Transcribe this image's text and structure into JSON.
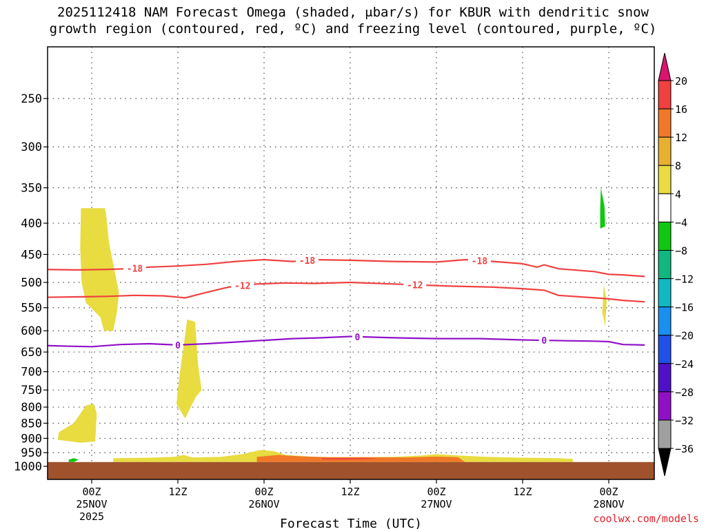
{
  "title": {
    "line1": "2025112418 NAM Forecast Omega (shaded, μbar/s) for KBUR with dendritic snow",
    "line2": "growth region (contoured, red, ºC) and freezing level (contoured, purple, ºC)"
  },
  "credit": "coolwx.com/models",
  "chart_data": {
    "type": "time-height cross section",
    "title": "2025112418 NAM Forecast Omega (shaded, μbar/s) for KBUR with dendritic snow growth region (contoured, red, ºC) and freezing level (contoured, purple, ºC)",
    "xlabel": "Forecast Time (UTC)",
    "ylabel": "",
    "y_scale": "log-pressure (hPa), inverted",
    "x_range_hours": [
      -7,
      77
    ],
    "y_range_hpa": [
      1050,
      200
    ],
    "y_ticks": [
      250,
      300,
      350,
      400,
      450,
      500,
      550,
      600,
      650,
      700,
      750,
      800,
      850,
      900,
      950,
      1000
    ],
    "x_ticks": [
      {
        "hour": 0,
        "label": "00Z",
        "sub1": "25NOV",
        "sub2": "2025"
      },
      {
        "hour": 12,
        "label": "12Z",
        "sub1": "",
        "sub2": ""
      },
      {
        "hour": 24,
        "label": "00Z",
        "sub1": "26NOV",
        "sub2": ""
      },
      {
        "hour": 36,
        "label": "12Z",
        "sub1": "",
        "sub2": ""
      },
      {
        "hour": 48,
        "label": "00Z",
        "sub1": "27NOV",
        "sub2": ""
      },
      {
        "hour": 60,
        "label": "12Z",
        "sub1": "",
        "sub2": ""
      },
      {
        "hour": 72,
        "label": "00Z",
        "sub1": "28NOV",
        "sub2": ""
      }
    ],
    "grid": true,
    "colorbar": {
      "levels": [
        "20",
        "16",
        "12",
        "8",
        "4",
        "−4",
        "−8",
        "−12",
        "−16",
        "−20",
        "−24",
        "−28",
        "−32",
        "−36"
      ],
      "colors": [
        "#d8146e",
        "#f04040",
        "#f07828",
        "#e8b030",
        "#e8dc40",
        "#ffffff",
        "#10c810",
        "#10b880",
        "#10b8c0",
        "#1890f0",
        "#2050e8",
        "#5010c8",
        "#9010c8",
        "#a0a0a0",
        "#000000"
      ]
    },
    "contours": [
      {
        "name": "-18",
        "color": "#f04040",
        "label_hours": [
          6,
          30,
          54
        ],
        "points": [
          [
            -7,
            476
          ],
          [
            -2,
            477
          ],
          [
            2,
            476
          ],
          [
            5,
            475
          ],
          [
            8,
            472
          ],
          [
            12,
            470
          ],
          [
            16,
            467
          ],
          [
            20,
            462
          ],
          [
            24,
            459
          ],
          [
            28,
            462
          ],
          [
            31,
            459
          ],
          [
            36,
            460
          ],
          [
            42,
            462
          ],
          [
            48,
            463
          ],
          [
            52,
            459
          ],
          [
            56,
            462
          ],
          [
            60,
            466
          ],
          [
            62,
            472
          ],
          [
            63,
            468
          ],
          [
            65,
            475
          ],
          [
            70,
            480
          ],
          [
            72,
            485
          ],
          [
            74,
            486
          ],
          [
            77,
            489
          ]
        ]
      },
      {
        "name": "-12",
        "color": "#f04040",
        "label_hours": [
          21,
          45
        ],
        "points": [
          [
            -7,
            529
          ],
          [
            -2,
            528
          ],
          [
            2,
            527
          ],
          [
            6,
            525
          ],
          [
            10,
            526
          ],
          [
            13,
            530
          ],
          [
            16,
            519
          ],
          [
            19,
            509
          ],
          [
            23,
            503
          ],
          [
            27,
            501
          ],
          [
            31,
            502
          ],
          [
            36,
            500
          ],
          [
            42,
            503
          ],
          [
            46,
            505
          ],
          [
            50,
            507
          ],
          [
            56,
            509
          ],
          [
            60,
            512
          ],
          [
            63,
            515
          ],
          [
            65,
            525
          ],
          [
            70,
            530
          ],
          [
            72,
            532
          ],
          [
            74,
            535
          ],
          [
            77,
            538
          ]
        ]
      },
      {
        "name": "0",
        "color": "#9010c8",
        "label_hours": [
          12,
          37,
          63
        ],
        "points": [
          [
            -7,
            634
          ],
          [
            -3,
            636
          ],
          [
            0,
            637
          ],
          [
            4,
            632
          ],
          [
            8,
            630
          ],
          [
            12,
            633
          ],
          [
            16,
            630
          ],
          [
            20,
            626
          ],
          [
            24,
            622
          ],
          [
            28,
            618
          ],
          [
            32,
            616
          ],
          [
            36,
            613
          ],
          [
            42,
            616
          ],
          [
            48,
            618
          ],
          [
            54,
            618
          ],
          [
            60,
            621
          ],
          [
            66,
            623
          ],
          [
            70,
            624
          ],
          [
            72,
            625
          ],
          [
            74,
            632
          ],
          [
            77,
            633
          ]
        ]
      }
    ],
    "shaded_regions": [
      {
        "name": "upper updraft column",
        "color": "#e8dc40",
        "value_range": "4 to 8"
      },
      {
        "name": "mid updraft column",
        "color": "#e8dc40",
        "value_range": "4 to 8"
      },
      {
        "name": "low updraft blob",
        "color": "#e8dc40",
        "value_range": "4 to 8"
      },
      {
        "name": "near-surface band",
        "color": "#e8dc40",
        "value_range": "4 to 8"
      },
      {
        "name": "near-surface strong band",
        "color": "#f07828",
        "value_range": "12 to 16"
      },
      {
        "name": "near-surface core",
        "color": "#f04040",
        "value_range": "16 to 20"
      },
      {
        "name": "small downdraft",
        "color": "#10c810",
        "value_range": "-8 to -4"
      }
    ],
    "terrain": {
      "color": "#a0522d",
      "surface_hpa": 984
    }
  }
}
